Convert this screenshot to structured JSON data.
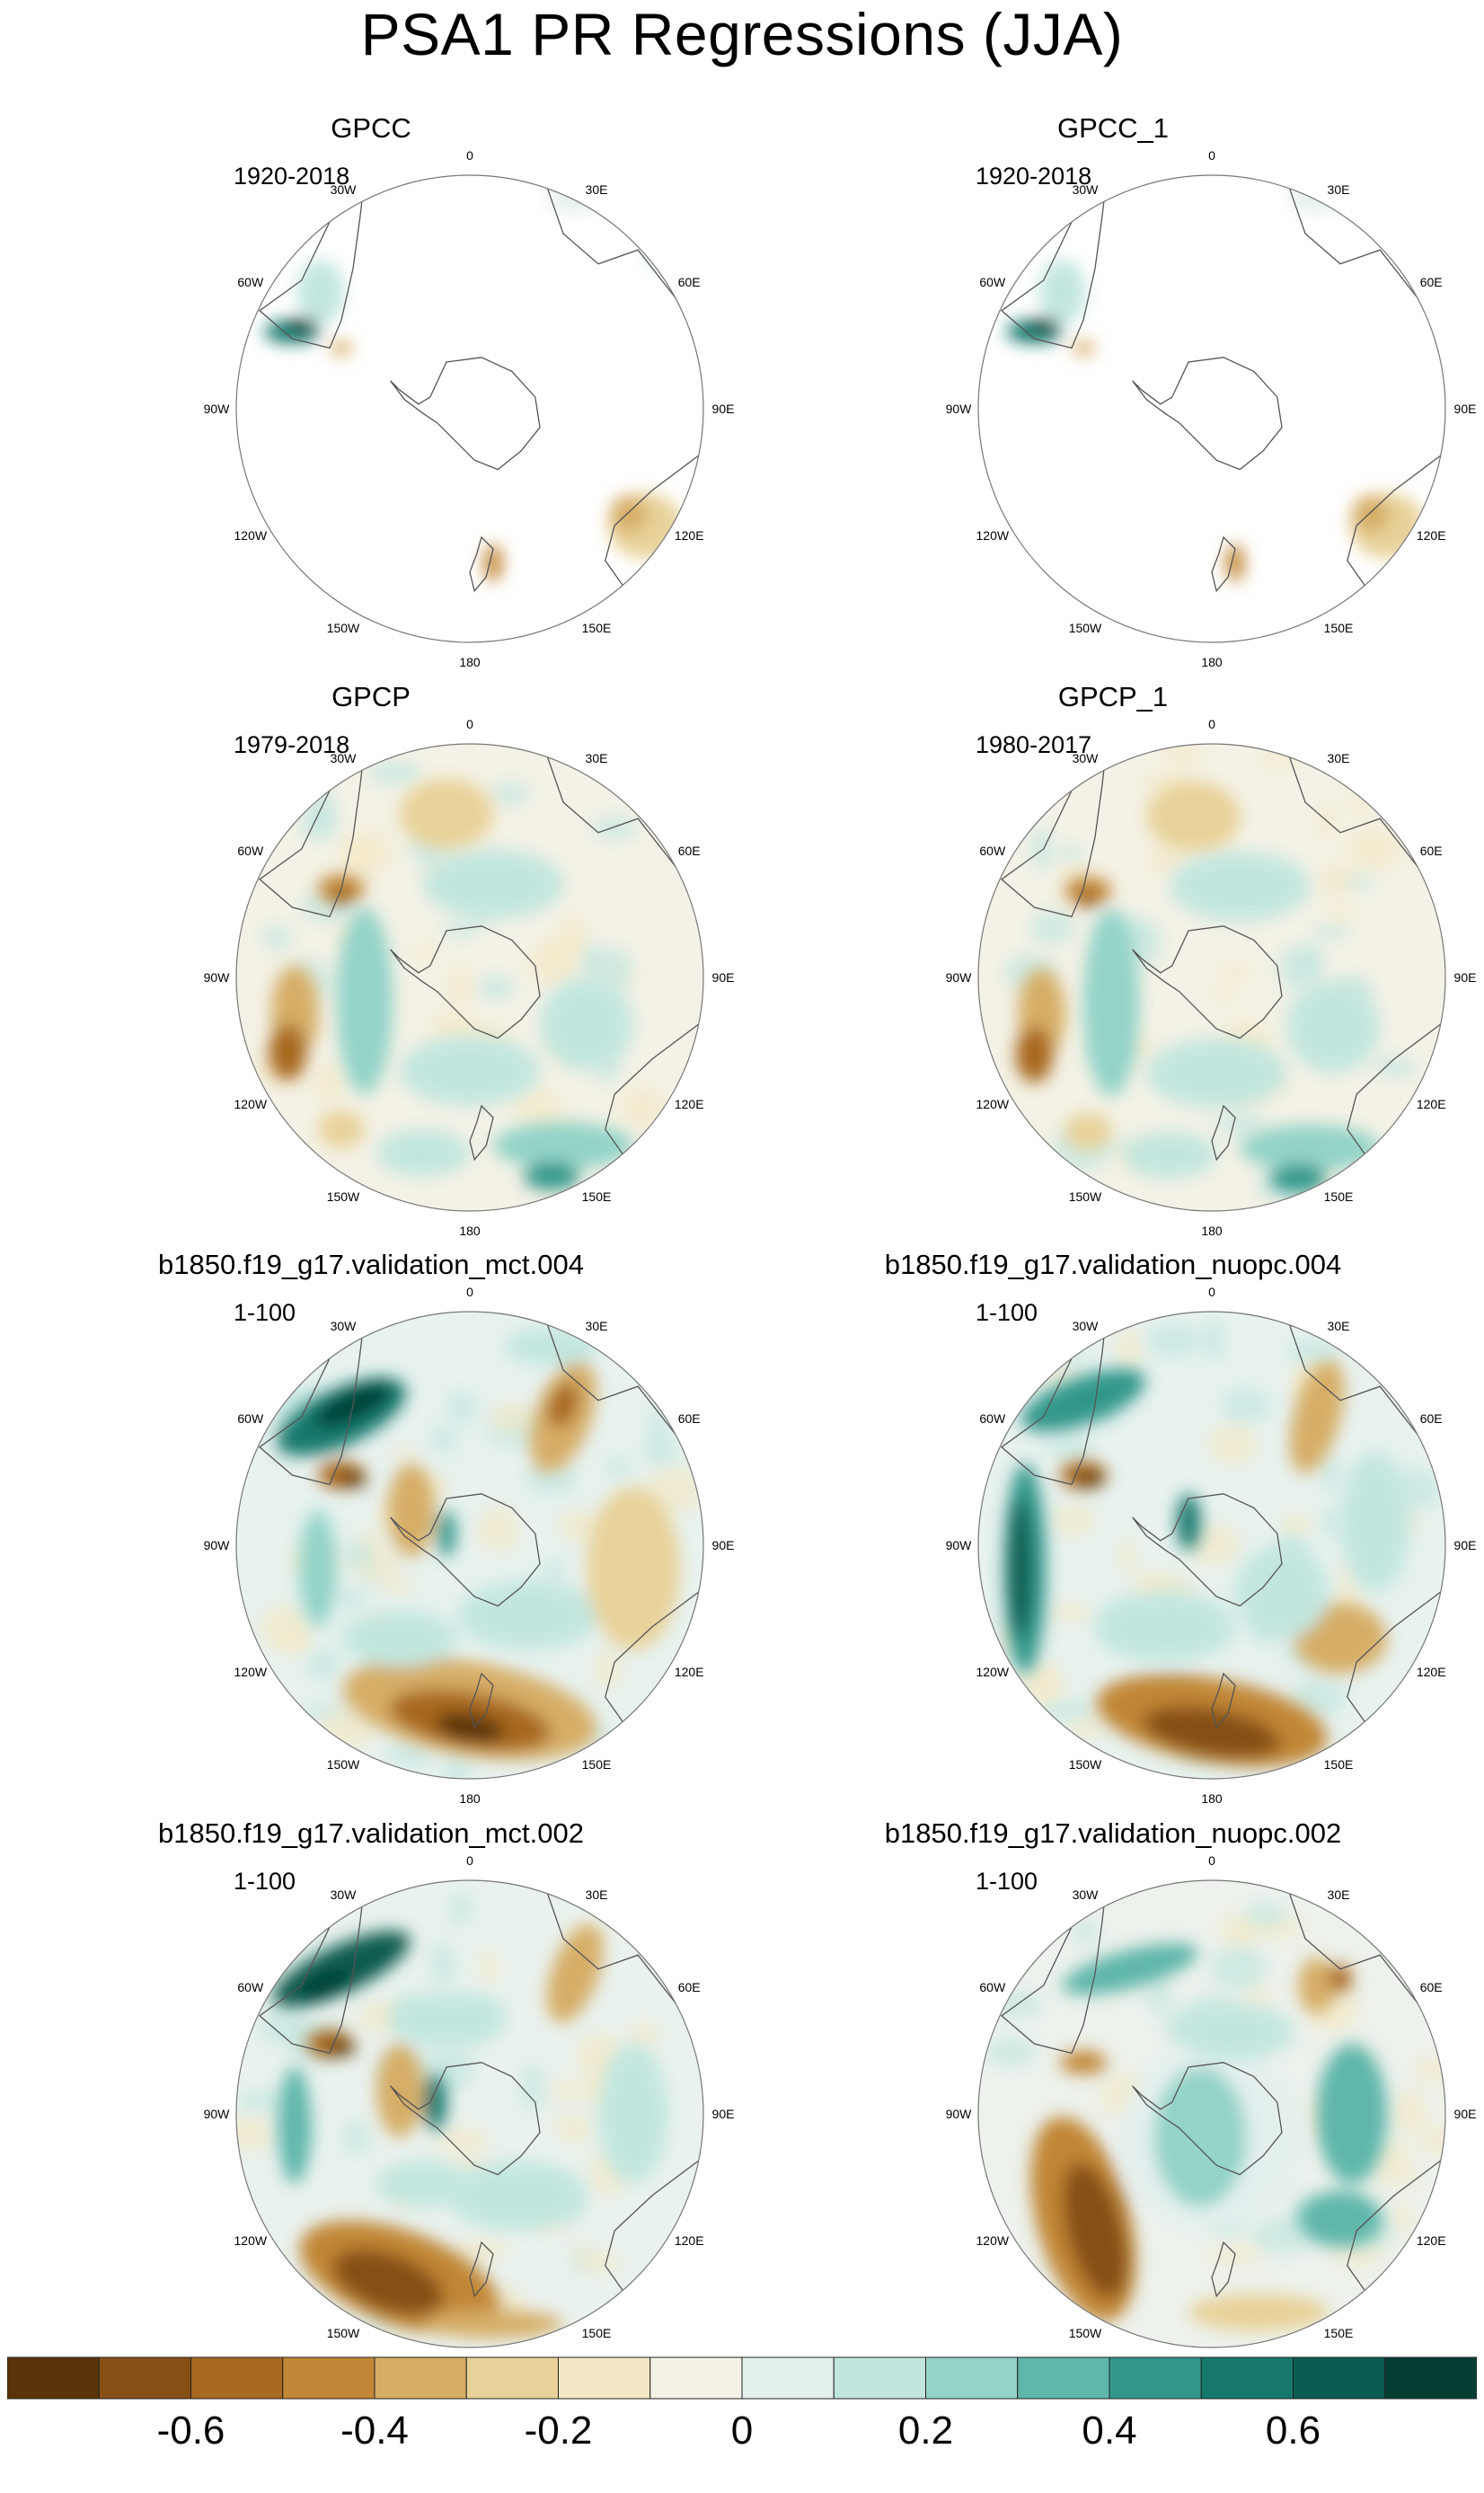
{
  "title": "PSA1 PR Regressions (JJA)",
  "chart_data": {
    "type": "polar-map-grid",
    "title": "PSA1 PR Regressions (JJA)",
    "projection": "south-polar-stereographic",
    "longitude_labels": [
      "0",
      "30E",
      "60E",
      "90E",
      "120E",
      "150E",
      "180",
      "150W",
      "120W",
      "90W",
      "60W",
      "30W"
    ],
    "panels": [
      {
        "title": "GPCC",
        "period": "1920-2018",
        "coverage": "land"
      },
      {
        "title": "GPCC_1",
        "period": "1920-2018",
        "coverage": "land"
      },
      {
        "title": "GPCP",
        "period": "1979-2018",
        "coverage": "global"
      },
      {
        "title": "GPCP_1",
        "period": "1980-2017",
        "coverage": "global"
      },
      {
        "title": "b1850.f19_g17.validation_mct.004",
        "period": "1-100",
        "coverage": "global"
      },
      {
        "title": "b1850.f19_g17.validation_nuopc.004",
        "period": "1-100",
        "coverage": "global"
      },
      {
        "title": "b1850.f19_g17.validation_mct.002",
        "period": "1-100",
        "coverage": "global"
      },
      {
        "title": "b1850.f19_g17.validation_nuopc.002",
        "period": "1-100",
        "coverage": "global"
      }
    ],
    "colorbar": {
      "levels": [
        -0.7,
        -0.6,
        -0.5,
        -0.4,
        -0.3,
        -0.2,
        -0.1,
        0,
        0.1,
        0.2,
        0.3,
        0.4,
        0.5,
        0.6,
        0.7
      ],
      "tick_labels": [
        "-0.6",
        "-0.4",
        "-0.2",
        "0",
        "0.2",
        "0.4",
        "0.6"
      ],
      "tick_values": [
        -0.6,
        -0.4,
        -0.2,
        0,
        0.2,
        0.4,
        0.6
      ],
      "colors": [
        "#5a3409",
        "#864f14",
        "#a8681f",
        "#c18636",
        "#d6ad66",
        "#e8d299",
        "#f3e8c6",
        "#f4f2e6",
        "#e4f0ee",
        "#c2e6df",
        "#93d3c8",
        "#5fb6aa",
        "#32978b",
        "#16786d",
        "#0b5c50",
        "#053f34"
      ]
    }
  }
}
